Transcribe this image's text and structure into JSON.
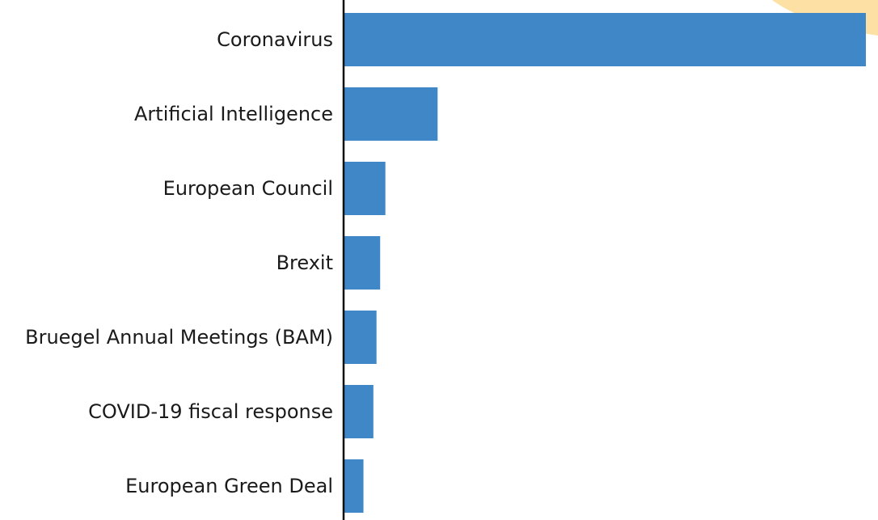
{
  "colors": {
    "bar": "#3f87c6",
    "axis": "#111111",
    "label": "#1a1a1a",
    "corner_accent": "#fde0a4",
    "background": "#ffffff"
  },
  "chart_data": {
    "type": "bar",
    "orientation": "horizontal",
    "categories": [
      "Coronavirus",
      "Artificial Intelligence",
      "European Council",
      "Brexit",
      "Bruegel Annual Meetings (BAM)",
      "COVID-19 fiscal response",
      "European Green Deal"
    ],
    "values": [
      100,
      18,
      8,
      7,
      6.3,
      5.7,
      3.8
    ],
    "title": "",
    "xlabel": "",
    "ylabel": "",
    "xlim": [
      0,
      100
    ],
    "grid": false,
    "legend": "none"
  }
}
